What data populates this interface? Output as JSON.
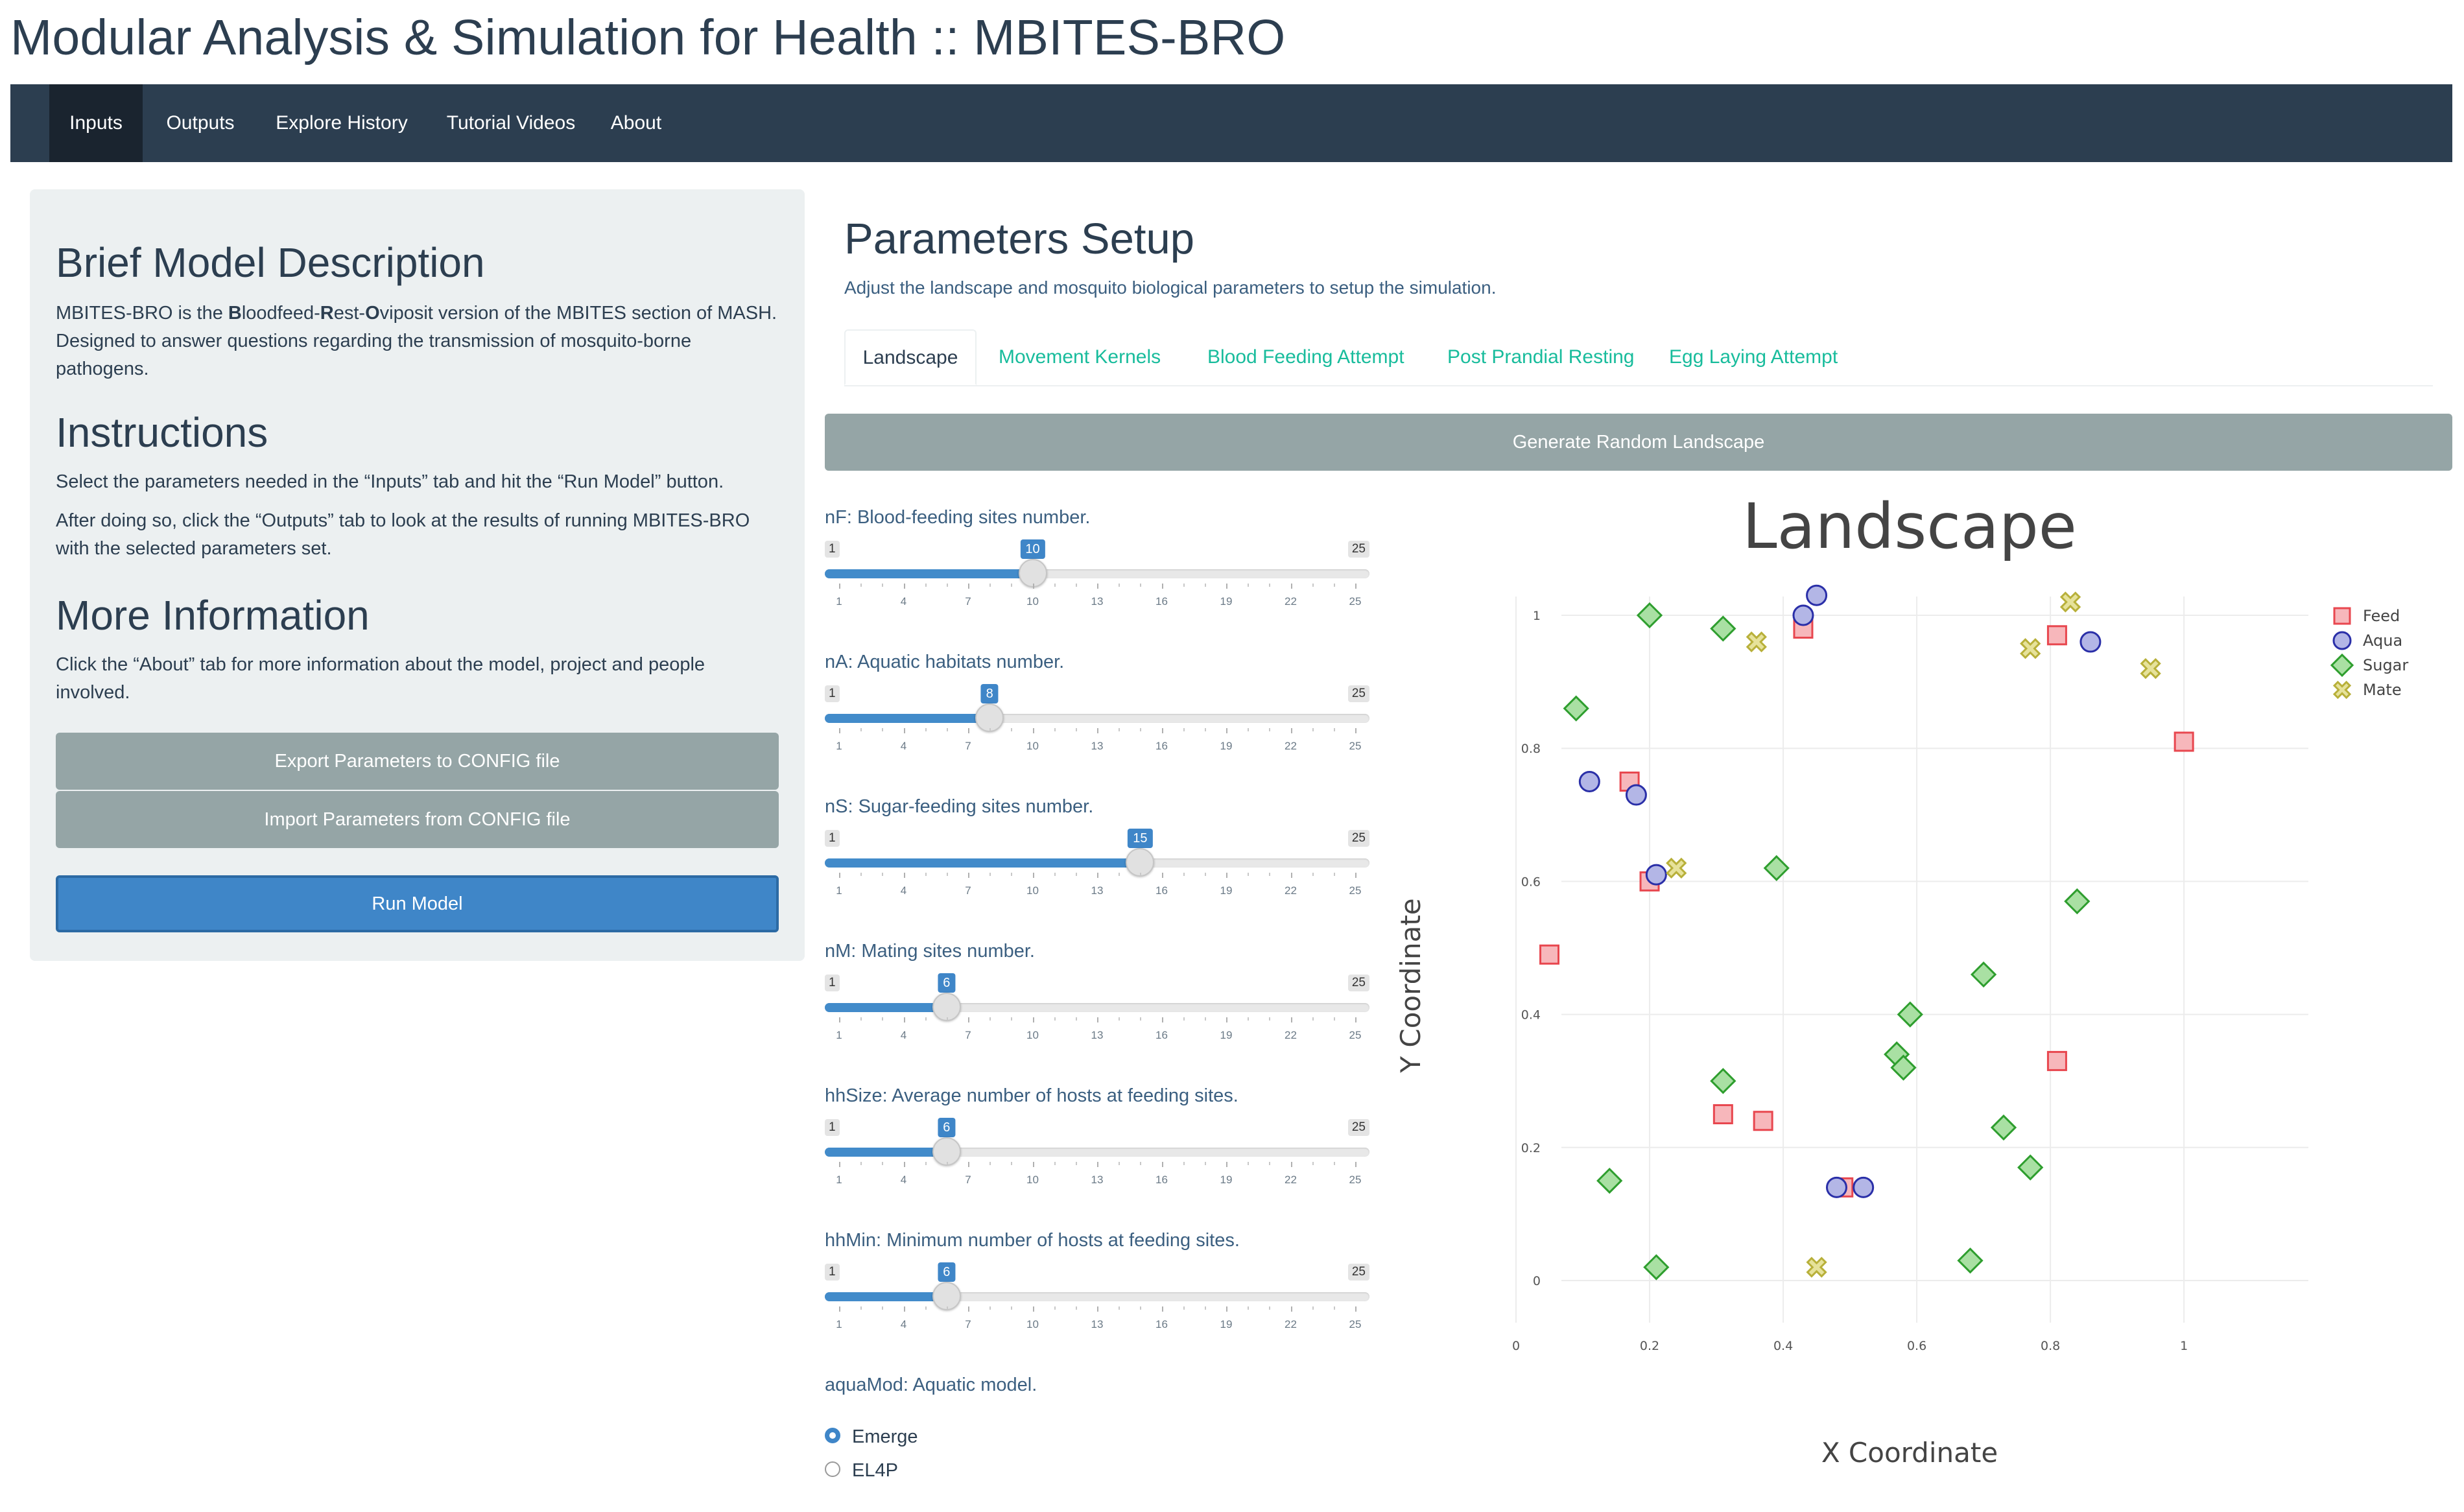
{
  "app": {
    "title": "Modular Analysis & Simulation for Health :: MBITES-BRO"
  },
  "nav": {
    "items": [
      "Inputs",
      "Outputs",
      "Explore History",
      "Tutorial Videos",
      "About"
    ],
    "active": "Inputs"
  },
  "sidebar": {
    "desc_title": "Brief Model Description",
    "desc_pre": "MBITES-BRO is the ",
    "desc_b1": "B",
    "desc_t1": "loodfeed-",
    "desc_b2": "R",
    "desc_t2": "est-",
    "desc_b3": "O",
    "desc_post": "viposit version of the MBITES section of MASH. Designed to answer questions regarding the transmission of mosquito-borne pathogens.",
    "instr_title": "Instructions",
    "instr_p1": "Select the parameters needed in the “Inputs” tab and hit the “Run Model” button.",
    "instr_p2": "After doing so, click the “Outputs” tab to look at the results of running MBITES-BRO with the selected parameters set.",
    "more_title": "More Information",
    "more_p": "Click the “About” tab for more information about the model, project and people involved.",
    "export_btn": "Export Parameters to CONFIG file",
    "import_btn": "Import Parameters from CONFIG file",
    "run_btn": "Run Model"
  },
  "main": {
    "title": "Parameters Setup",
    "subtitle": "Adjust the landscape and mosquito biological parameters to setup the simulation.",
    "tabs": [
      "Landscape",
      "Movement Kernels",
      "Blood Feeding Attempt",
      "Post Prandial Resting",
      "Egg Laying Attempt"
    ],
    "gen_btn": "Generate Random Landscape"
  },
  "sliders": [
    {
      "label": "nF: Blood-feeding sites number.",
      "min": 1,
      "max": 25,
      "value": 10
    },
    {
      "label": "nA: Aquatic habitats number.",
      "min": 1,
      "max": 25,
      "value": 8
    },
    {
      "label": "nS: Sugar-feeding sites number.",
      "min": 1,
      "max": 25,
      "value": 15
    },
    {
      "label": "nM: Mating sites number.",
      "min": 1,
      "max": 25,
      "value": 6
    },
    {
      "label": "hhSize: Average number of hosts at feeding sites.",
      "min": 1,
      "max": 25,
      "value": 6
    },
    {
      "label": "hhMin: Minimum number of hosts at feeding sites.",
      "min": 1,
      "max": 25,
      "value": 6
    }
  ],
  "slider_ticks": [
    "1",
    "4",
    "7",
    "10",
    "13",
    "16",
    "19",
    "22",
    "25"
  ],
  "aqua": {
    "label": "aquaMod: Aquatic model.",
    "options": [
      "Emerge",
      "EL4P"
    ],
    "selected": "Emerge"
  },
  "chart_data": {
    "type": "scatter",
    "title": "Landscape",
    "xlabel": "X Coordinate",
    "ylabel": "Y Coordinate",
    "xlim": [
      0,
      1
    ],
    "ylim": [
      0,
      1
    ],
    "xticks": [
      "0",
      "0.2",
      "0.4",
      "0.6",
      "0.8",
      "1"
    ],
    "yticks": [
      "0",
      "0.2",
      "0.4",
      "0.6",
      "0.8",
      "1"
    ],
    "legend_position": "top-right",
    "series": [
      {
        "name": "Feed",
        "marker": "square",
        "color": "#e8474f",
        "fill": "#f7b7bb",
        "points": [
          [
            0.43,
            0.98
          ],
          [
            0.81,
            0.97
          ],
          [
            1.0,
            0.81
          ],
          [
            0.17,
            0.75
          ],
          [
            0.2,
            0.6
          ],
          [
            0.05,
            0.49
          ],
          [
            0.81,
            0.33
          ],
          [
            0.31,
            0.25
          ],
          [
            0.37,
            0.24
          ],
          [
            0.49,
            0.14
          ]
        ]
      },
      {
        "name": "Aqua",
        "marker": "circle",
        "color": "#2a2fa8",
        "fill": "#b3b6e6",
        "points": [
          [
            0.45,
            1.03
          ],
          [
            0.43,
            1.0
          ],
          [
            0.86,
            0.96
          ],
          [
            0.11,
            0.75
          ],
          [
            0.18,
            0.73
          ],
          [
            0.21,
            0.61
          ],
          [
            0.48,
            0.14
          ],
          [
            0.52,
            0.14
          ]
        ]
      },
      {
        "name": "Sugar",
        "marker": "diamond",
        "color": "#2e9e2e",
        "fill": "#a9e0a3",
        "points": [
          [
            0.2,
            1.0
          ],
          [
            0.31,
            0.98
          ],
          [
            0.09,
            0.86
          ],
          [
            0.39,
            0.62
          ],
          [
            0.84,
            0.57
          ],
          [
            0.7,
            0.46
          ],
          [
            0.59,
            0.4
          ],
          [
            0.57,
            0.34
          ],
          [
            0.58,
            0.32
          ],
          [
            0.31,
            0.3
          ],
          [
            0.73,
            0.23
          ],
          [
            0.77,
            0.17
          ],
          [
            0.14,
            0.15
          ],
          [
            0.21,
            0.02
          ],
          [
            0.68,
            0.03
          ]
        ]
      },
      {
        "name": "Mate",
        "marker": "x",
        "color": "#b8b03a",
        "fill": "#e6e29a",
        "points": [
          [
            0.83,
            1.02
          ],
          [
            0.36,
            0.96
          ],
          [
            0.77,
            0.95
          ],
          [
            0.95,
            0.92
          ],
          [
            0.24,
            0.62
          ],
          [
            0.45,
            0.02
          ]
        ]
      }
    ]
  }
}
